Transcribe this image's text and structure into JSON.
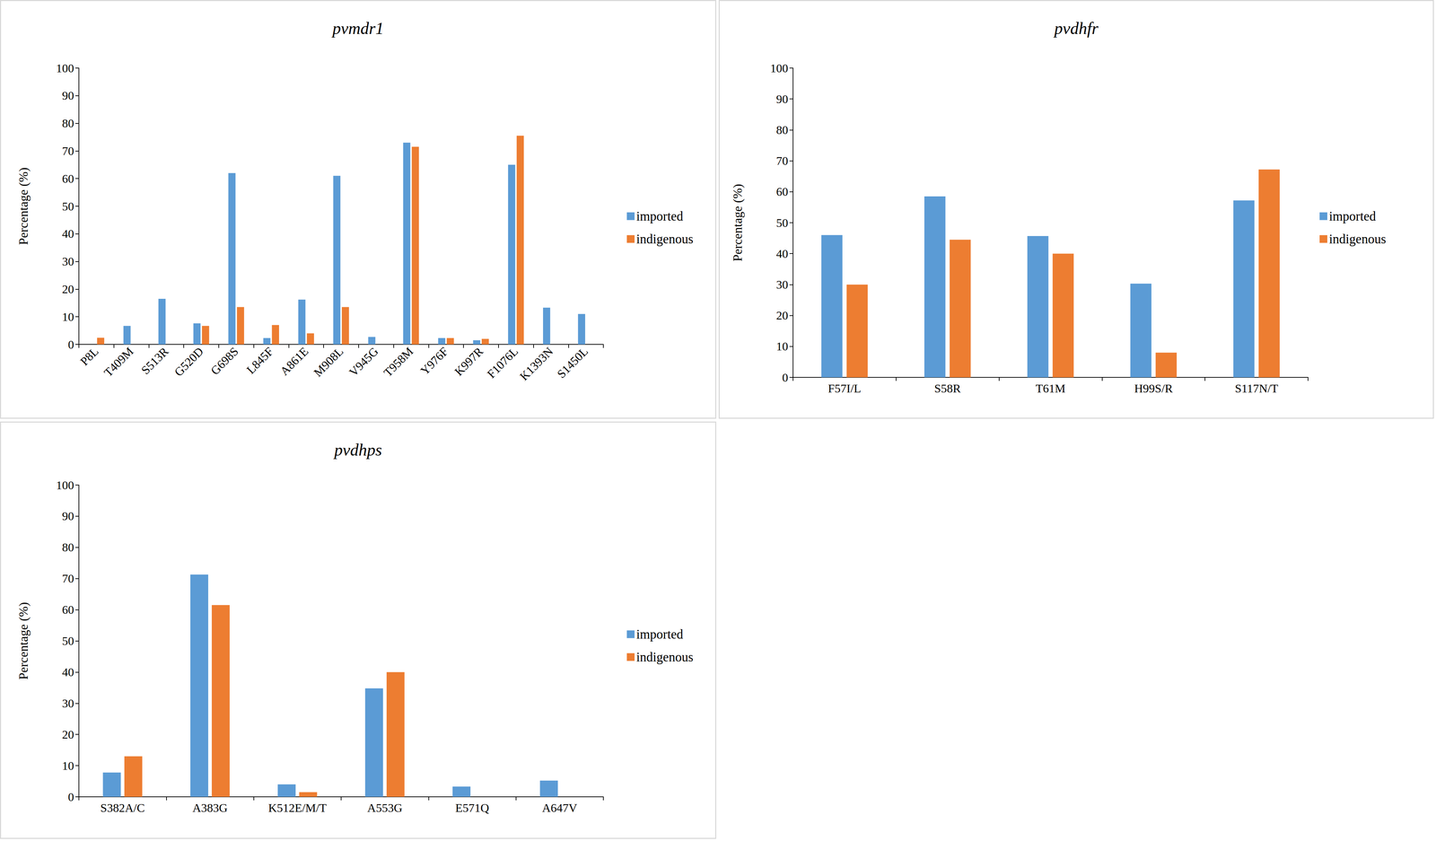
{
  "chart_data": [
    {
      "type": "bar",
      "title": "pvmdr1",
      "y_label": "Percentage (%)",
      "categories": [
        "P8L",
        "T409M",
        "S513R",
        "G520D",
        "G698S",
        "L845F",
        "A861E",
        "M908L",
        "V945G",
        "T958M",
        "Y976F",
        "K997R",
        "F1076L",
        "K1393N",
        "S1450L"
      ],
      "series": [
        {
          "name": "imported",
          "color": "#5B9BD5",
          "values": [
            0,
            6.7,
            16.5,
            7.6,
            62,
            2.3,
            16.2,
            61,
            2.7,
            73,
            2.3,
            1.5,
            65,
            13.3,
            11
          ]
        },
        {
          "name": "indigenous",
          "color": "#ED7D31",
          "values": [
            2.4,
            0,
            0,
            6.7,
            13.5,
            7,
            4,
            13.5,
            0,
            71.5,
            2.3,
            2,
            75.5,
            0,
            0
          ]
        }
      ],
      "ylim": [
        0,
        100
      ],
      "yticks": [
        0,
        10,
        20,
        30,
        40,
        50,
        60,
        70,
        80,
        90,
        100
      ],
      "grid": false,
      "legend": "right"
    },
    {
      "type": "bar",
      "title": "pvdhfr",
      "y_label": "Percentage (%)",
      "categories": [
        "F57I/L",
        "S58R",
        "T61M",
        "H99S/R",
        "S117N/T"
      ],
      "series": [
        {
          "name": "imported",
          "color": "#5B9BD5",
          "values": [
            46,
            58.5,
            45.7,
            30.3,
            57.2
          ]
        },
        {
          "name": "indigenous",
          "color": "#ED7D31",
          "values": [
            30,
            44.5,
            40,
            8,
            67.2
          ]
        }
      ],
      "ylim": [
        0,
        100
      ],
      "yticks": [
        0,
        10,
        20,
        30,
        40,
        50,
        60,
        70,
        80,
        90,
        100
      ],
      "grid": false,
      "legend": "right"
    },
    {
      "type": "bar",
      "title": "pvdhps",
      "y_label": "Percentage (%)",
      "categories": [
        "S382A/C",
        "A383G",
        "K512E/M/T",
        "A553G",
        "E571Q",
        "A647V"
      ],
      "series": [
        {
          "name": "imported",
          "color": "#5B9BD5",
          "values": [
            7.8,
            71.3,
            4,
            34.8,
            3.3,
            5.2
          ]
        },
        {
          "name": "indigenous",
          "color": "#ED7D31",
          "values": [
            13,
            61.5,
            1.5,
            40,
            0,
            0
          ]
        }
      ],
      "ylim": [
        0,
        100
      ],
      "yticks": [
        0,
        10,
        20,
        30,
        40,
        50,
        60,
        70,
        80,
        90,
        100
      ],
      "grid": false,
      "legend": "right"
    }
  ]
}
